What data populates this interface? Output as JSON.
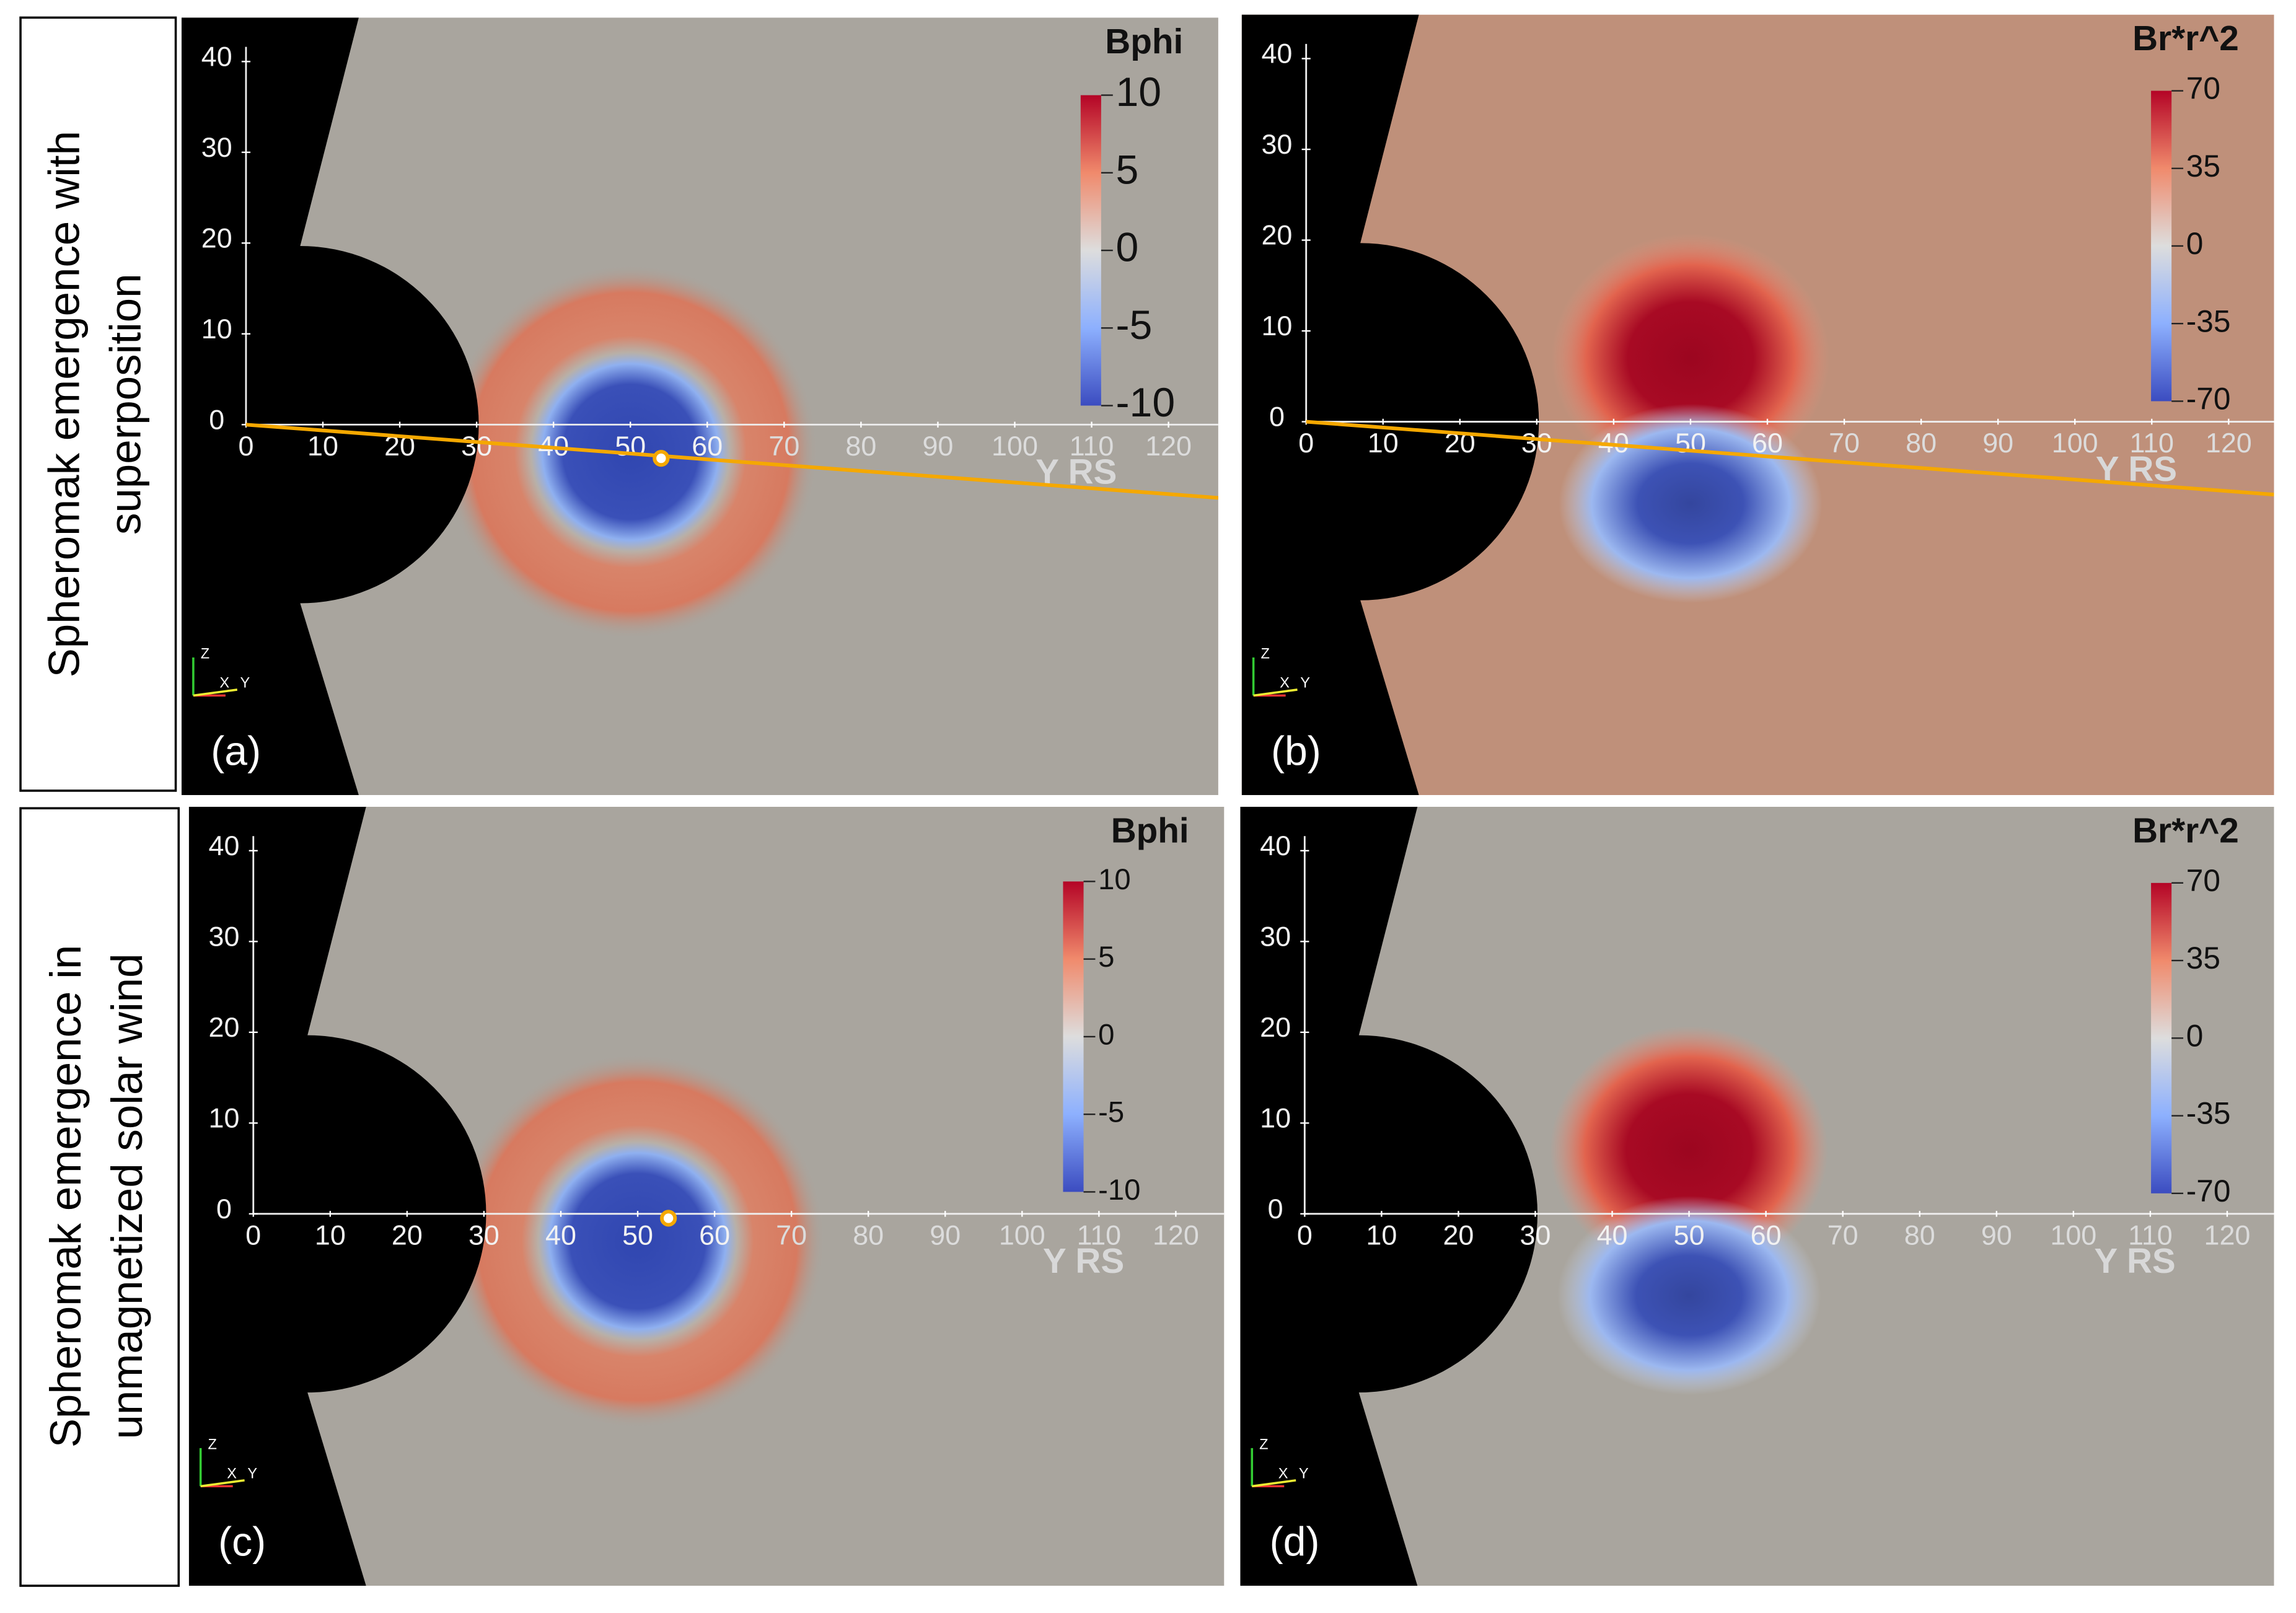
{
  "row_labels": [
    {
      "lines": [
        "Spheromak emergence with",
        "superposition"
      ]
    },
    {
      "lines": [
        "Spheromak emergence in",
        "unmagnetized solar wind"
      ]
    }
  ],
  "panels": [
    {
      "label": "(a)",
      "colorbar": {
        "title": "Bphi",
        "ticks": [
          10,
          5,
          0,
          -5,
          -10
        ]
      },
      "x_ticks": [
        0,
        10,
        20,
        30,
        40,
        50,
        60,
        70,
        80,
        90,
        100,
        110,
        120
      ],
      "y_ticks": [
        0,
        10,
        20,
        30,
        40
      ],
      "axis_label": "Y RS",
      "triad": [
        "Z",
        "X",
        "Y"
      ]
    },
    {
      "label": "(b)",
      "colorbar": {
        "title": "Br*r^2",
        "ticks": [
          70,
          35,
          0,
          -35,
          -70
        ]
      },
      "x_ticks": [
        0,
        10,
        20,
        30,
        40,
        50,
        60,
        70,
        80,
        90,
        100,
        110,
        120
      ],
      "y_ticks": [
        0,
        10,
        20,
        30,
        40
      ],
      "axis_label": "Y RS",
      "triad": [
        "Z",
        "X",
        "Y"
      ]
    },
    {
      "label": "(c)",
      "colorbar": {
        "title": "Bphi",
        "ticks": [
          10,
          5,
          0,
          -5,
          -10
        ]
      },
      "x_ticks": [
        0,
        10,
        20,
        30,
        40,
        50,
        60,
        70,
        80,
        90,
        100,
        110,
        120
      ],
      "y_ticks": [
        0,
        10,
        20,
        30,
        40
      ],
      "axis_label": "Y RS",
      "triad": [
        "Z",
        "X",
        "Y"
      ]
    },
    {
      "label": "(d)",
      "colorbar": {
        "title": "Br*r^2",
        "ticks": [
          70,
          35,
          0,
          -35,
          -70
        ]
      },
      "x_ticks": [
        0,
        10,
        20,
        30,
        40,
        50,
        60,
        70,
        80,
        90,
        100,
        110,
        120
      ],
      "y_ticks": [
        0,
        10,
        20,
        30,
        40
      ],
      "axis_label": "Y RS",
      "triad": [
        "Z",
        "X",
        "Y"
      ]
    }
  ]
}
